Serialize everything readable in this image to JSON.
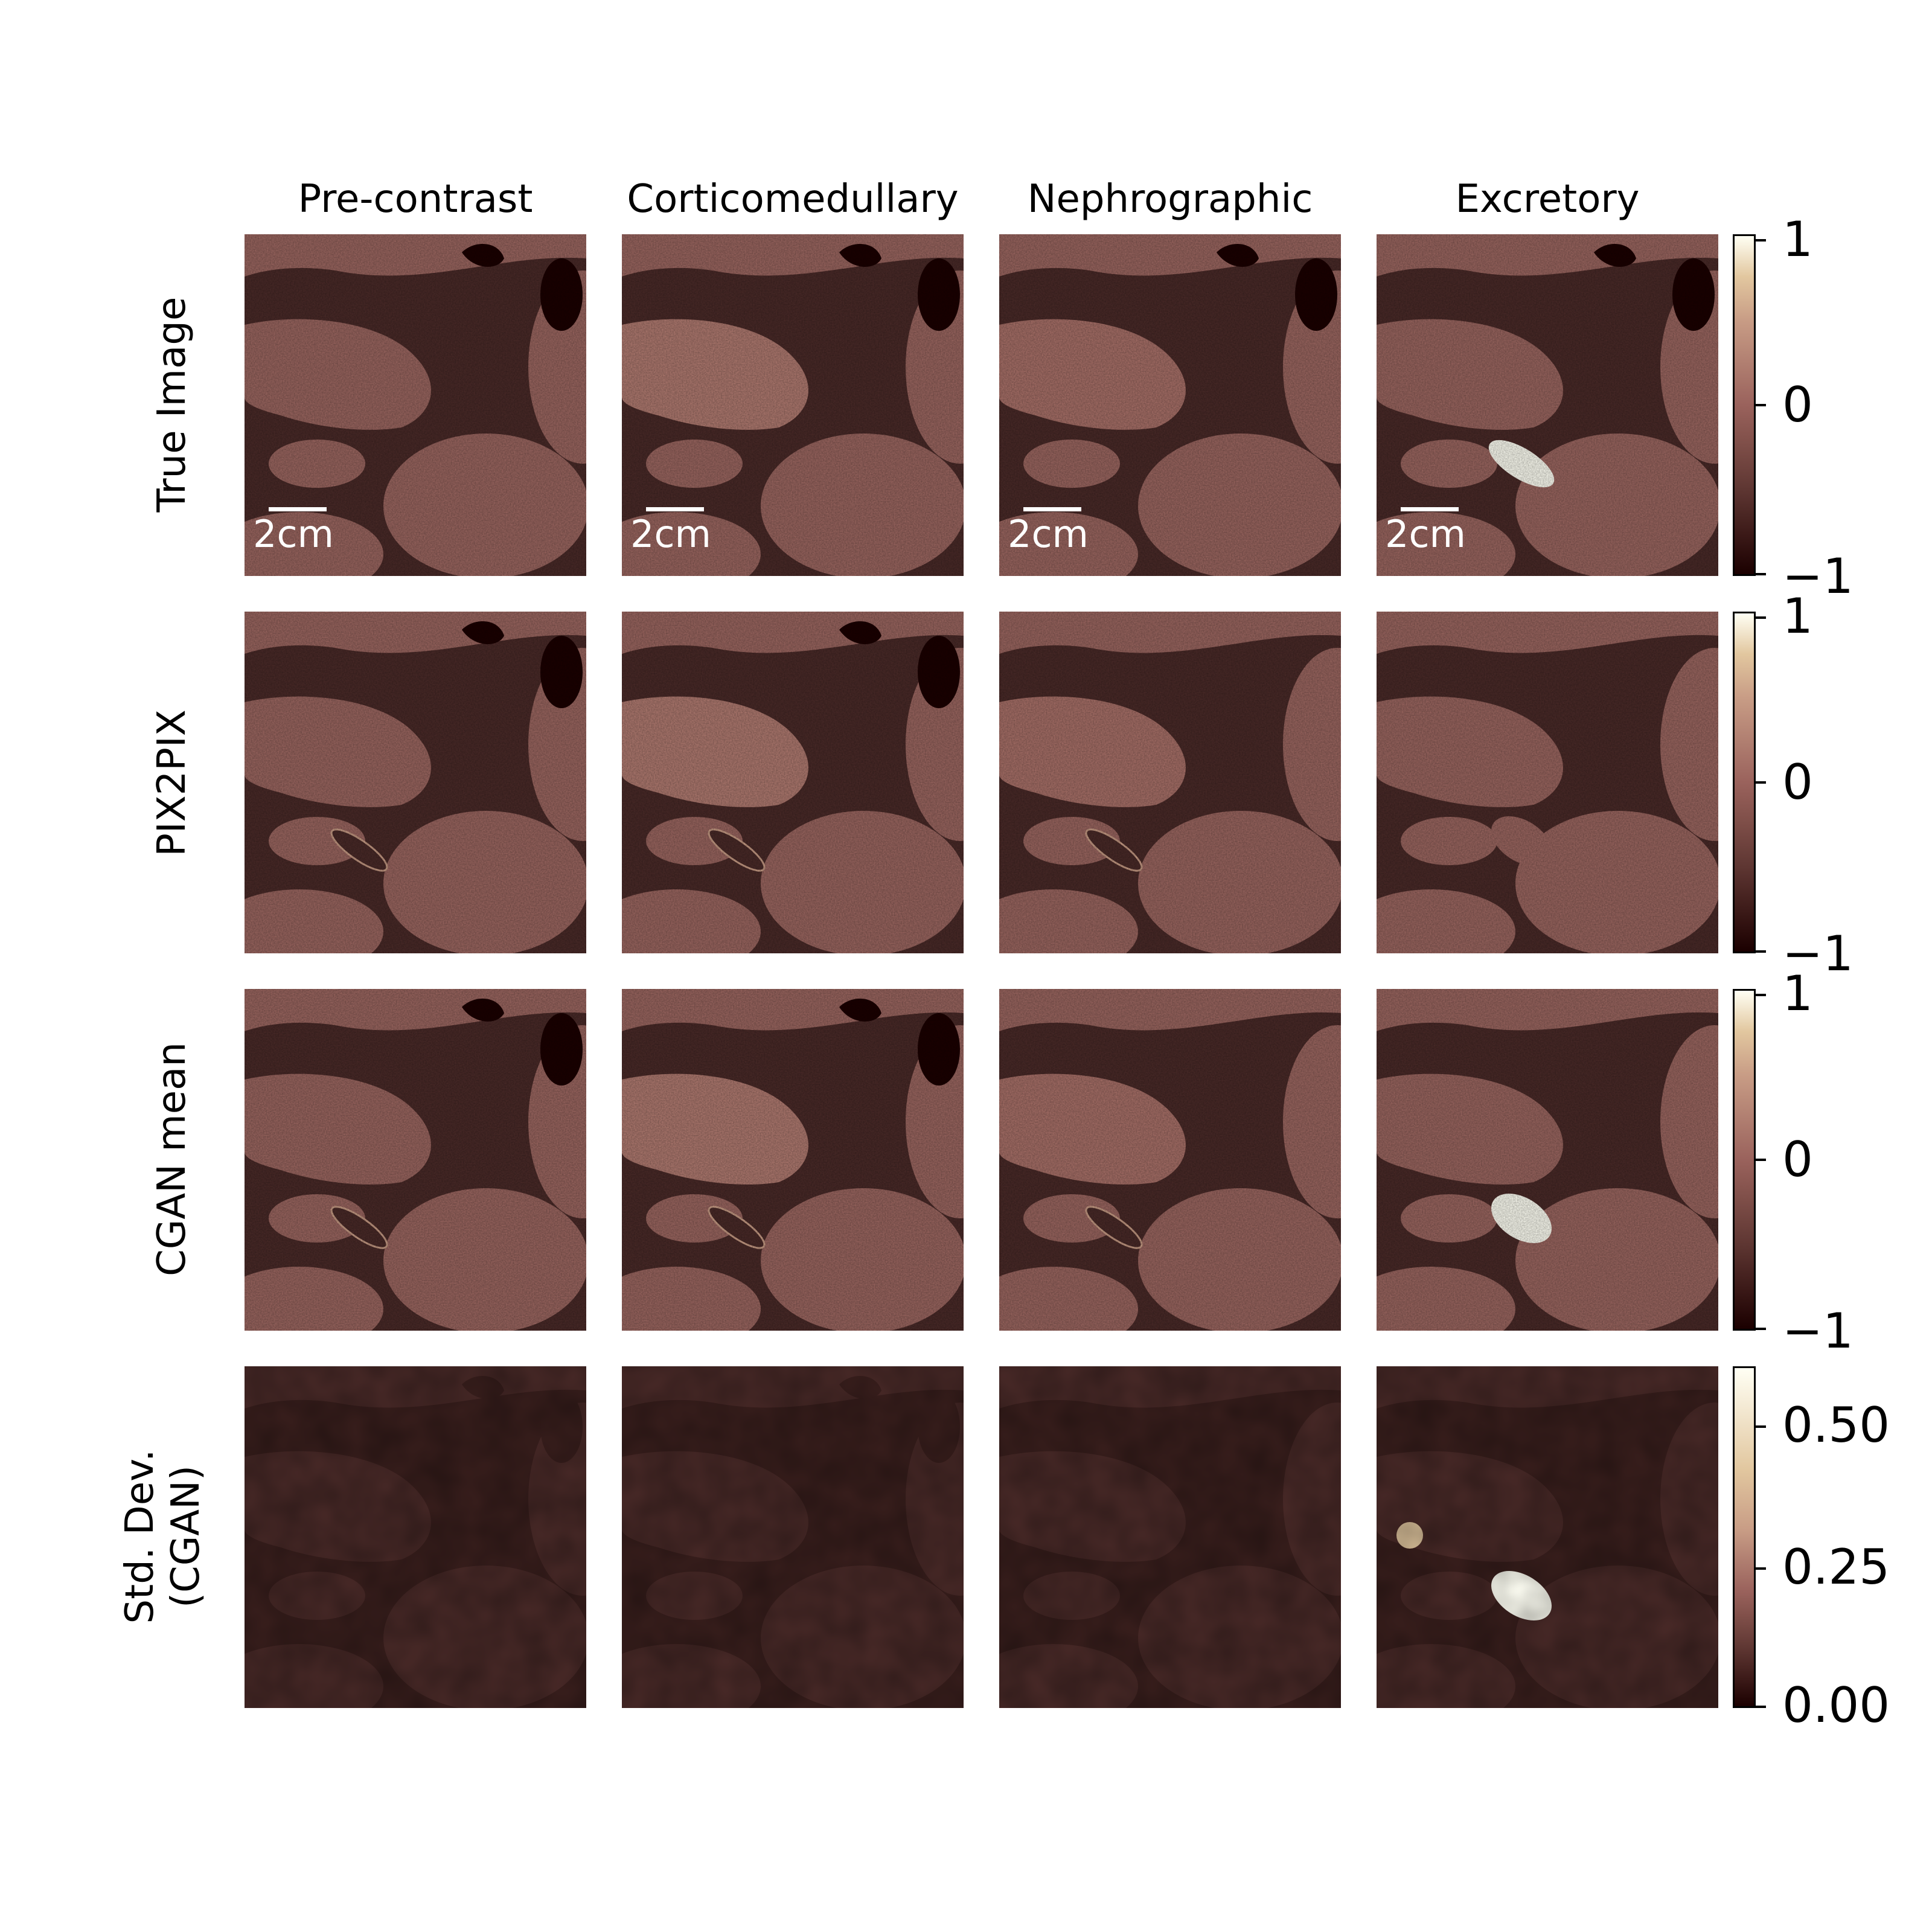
{
  "columns": [
    {
      "title": "Pre-contrast"
    },
    {
      "title": "Corticomedullary"
    },
    {
      "title": "Nephrographic"
    },
    {
      "title": "Excretory"
    }
  ],
  "rows": [
    {
      "label": "True Image"
    },
    {
      "label": "PIX2PIX"
    },
    {
      "label": "CGAN mean"
    },
    {
      "label_line1": "Std. Dev.",
      "label_line2": "(CGAN)"
    }
  ],
  "scale_bar": {
    "label": "2cm"
  },
  "colorbars": [
    {
      "ticks": [
        "1",
        "0",
        "−1"
      ]
    },
    {
      "ticks": [
        "1",
        "0",
        "−1"
      ]
    },
    {
      "ticks": [
        "1",
        "0",
        "−1"
      ]
    },
    {
      "ticks": [
        "0.50",
        "0.25",
        "0.00"
      ]
    }
  ],
  "colors": {
    "tissue": "#9b6660",
    "fat": "#4a2a28",
    "air": "#1b0000",
    "contrast": "#fffff4"
  }
}
